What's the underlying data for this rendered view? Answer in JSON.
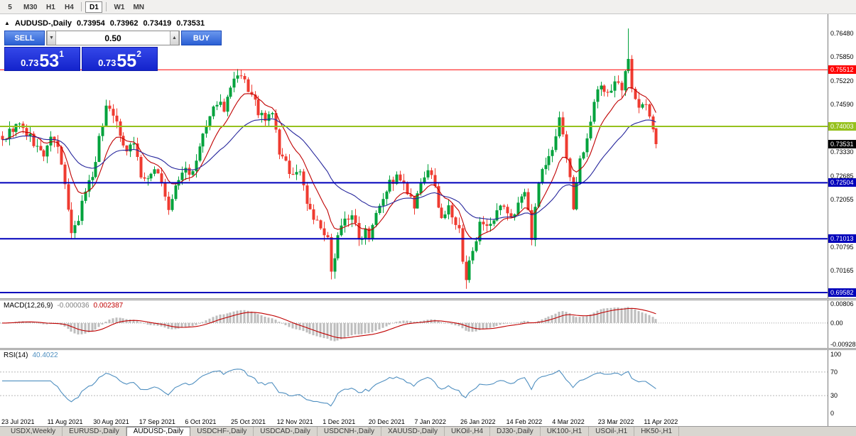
{
  "colors": {
    "candle_up": "#00a23c",
    "candle_down": "#ef3b30",
    "ma_fast": "#c00000",
    "ma_slow": "#26269c",
    "macd_hist": "#bdbdbd",
    "macd_signal": "#c00000",
    "rsi_line": "#4f8fc0"
  },
  "toolbar": {
    "periods": [
      {
        "label": "5"
      },
      {
        "label": "M30"
      },
      {
        "label": "H1"
      },
      {
        "label": "H4"
      },
      {
        "sep": true
      },
      {
        "label": "D1",
        "active": true
      },
      {
        "sep": true
      },
      {
        "label": "W1"
      },
      {
        "label": "MN"
      }
    ]
  },
  "chart_header": {
    "symbol": "AUDUSD-,Daily",
    "open": "0.73954",
    "high": "0.73962",
    "low": "0.73419",
    "close": "0.73531"
  },
  "trade_panel": {
    "sell_label": "SELL",
    "buy_label": "BUY",
    "volume": "0.50",
    "bid": {
      "prefix": "0.73",
      "big": "53",
      "sup": "1"
    },
    "ask": {
      "prefix": "0.73",
      "big": "55",
      "sup": "2"
    }
  },
  "price_axis": {
    "ticks": [
      {
        "label": "0.76480",
        "value": 0.7648
      },
      {
        "label": "0.75850",
        "value": 0.7585
      },
      {
        "label": "0.75220",
        "value": 0.7522
      },
      {
        "label": "0.74590",
        "value": 0.7459
      },
      {
        "label": "0.73330",
        "value": 0.7333
      },
      {
        "label": "0.72685",
        "value": 0.72685
      },
      {
        "label": "0.72055",
        "value": 0.72055
      },
      {
        "label": "0.70795",
        "value": 0.70795
      },
      {
        "label": "0.70165",
        "value": 0.70165
      }
    ],
    "lines": [
      {
        "label": "0.75512",
        "value": 0.75512,
        "color": "#ff0000",
        "width": 1
      },
      {
        "label": "0.74003",
        "value": 0.74003,
        "color": "#96c11e",
        "width": 2
      },
      {
        "label": "0.72504",
        "value": 0.72504,
        "color": "#0000bb",
        "width": 2
      },
      {
        "label": "0.71013",
        "value": 0.71013,
        "color": "#0000bb",
        "width": 2
      },
      {
        "label": "0.69582",
        "value": 0.69582,
        "color": "#0000bb",
        "width": 2
      }
    ],
    "current": {
      "label": "0.73531",
      "value": 0.73531,
      "color": "#000000"
    }
  },
  "macd": {
    "label": "MACD(12,26,9)",
    "value1": "-0.000036",
    "value2": "0.002387",
    "axis": [
      {
        "label": "0.00806",
        "value": 0.00806
      },
      {
        "label": "0.00",
        "value": 0
      },
      {
        "label": "-0.00928",
        "value": -0.00928
      }
    ]
  },
  "rsi": {
    "label": "RSI(14)",
    "value": "40.4022",
    "levels": [
      70,
      30
    ],
    "axis": [
      {
        "label": "100",
        "value": 100
      },
      {
        "label": "70",
        "value": 70
      },
      {
        "label": "30",
        "value": 30
      },
      {
        "label": "0",
        "value": 0
      }
    ]
  },
  "time_axis": {
    "labels": [
      "23 Jul 2021",
      "11 Aug 2021",
      "30 Aug 2021",
      "17 Sep 2021",
      "6 Oct 2021",
      "25 Oct 2021",
      "12 Nov 2021",
      "1 Dec 2021",
      "20 Dec 2021",
      "7 Jan 2022",
      "26 Jan 2022",
      "14 Feb 2022",
      "4 Mar 2022",
      "23 Mar 2022",
      "11 Apr 2022"
    ]
  },
  "tabs": [
    {
      "label": "USDX,Weekly"
    },
    {
      "label": "EURUSD-,Daily"
    },
    {
      "label": "AUDUSD-,Daily",
      "active": true
    },
    {
      "label": "USDCHF-,Daily"
    },
    {
      "label": "USDCAD-,Daily"
    },
    {
      "label": "USDCNH-,Daily"
    },
    {
      "label": "XAUUSD-,Daily"
    },
    {
      "label": "UKOil-,H4"
    },
    {
      "label": "DJ30-,Daily"
    },
    {
      "label": "UK100-,H1"
    },
    {
      "label": "USOil-,H1"
    },
    {
      "label": "HK50-,H1"
    }
  ],
  "chart_data": {
    "type": "candlestick",
    "symbol": "AUDUSD-,Daily",
    "count": 190,
    "price_min": 0.6943,
    "price_max": 0.7699,
    "anchors": [
      [
        0,
        0.7365
      ],
      [
        3,
        0.7395
      ],
      [
        5,
        0.7402
      ],
      [
        8,
        0.737
      ],
      [
        10,
        0.7345
      ],
      [
        12,
        0.7318
      ],
      [
        13,
        0.7355
      ],
      [
        15,
        0.7368
      ],
      [
        16,
        0.734
      ],
      [
        18,
        0.725
      ],
      [
        20,
        0.7106
      ],
      [
        22,
        0.715
      ],
      [
        24,
        0.7235
      ],
      [
        26,
        0.727
      ],
      [
        28,
        0.7365
      ],
      [
        30,
        0.7455
      ],
      [
        32,
        0.744
      ],
      [
        34,
        0.737
      ],
      [
        36,
        0.7345
      ],
      [
        38,
        0.736
      ],
      [
        40,
        0.727
      ],
      [
        42,
        0.725
      ],
      [
        44,
        0.7295
      ],
      [
        46,
        0.7255
      ],
      [
        48,
        0.717
      ],
      [
        50,
        0.724
      ],
      [
        53,
        0.729
      ],
      [
        55,
        0.727
      ],
      [
        58,
        0.738
      ],
      [
        60,
        0.7415
      ],
      [
        62,
        0.747
      ],
      [
        64,
        0.745
      ],
      [
        66,
        0.75
      ],
      [
        68,
        0.753
      ],
      [
        70,
        0.7518
      ],
      [
        72,
        0.748
      ],
      [
        74,
        0.744
      ],
      [
        76,
        0.741
      ],
      [
        78,
        0.744
      ],
      [
        80,
        0.733
      ],
      [
        82,
        0.73
      ],
      [
        84,
        0.727
      ],
      [
        86,
        0.7285
      ],
      [
        88,
        0.72
      ],
      [
        90,
        0.716
      ],
      [
        92,
        0.7124
      ],
      [
        94,
        0.7094
      ],
      [
        95,
        0.7005
      ],
      [
        97,
        0.7118
      ],
      [
        99,
        0.715
      ],
      [
        101,
        0.717
      ],
      [
        103,
        0.7096
      ],
      [
        105,
        0.713
      ],
      [
        106,
        0.7112
      ],
      [
        108,
        0.718
      ],
      [
        110,
        0.7215
      ],
      [
        112,
        0.725
      ],
      [
        114,
        0.7263
      ],
      [
        116,
        0.724
      ],
      [
        117,
        0.7223
      ],
      [
        119,
        0.7181
      ],
      [
        121,
        0.724
      ],
      [
        123,
        0.729
      ],
      [
        125,
        0.723
      ],
      [
        127,
        0.716
      ],
      [
        129,
        0.718
      ],
      [
        131,
        0.714
      ],
      [
        132,
        0.7121
      ],
      [
        133,
        0.7034
      ],
      [
        134,
        0.699
      ],
      [
        136,
        0.708
      ],
      [
        138,
        0.7135
      ],
      [
        140,
        0.7125
      ],
      [
        142,
        0.714
      ],
      [
        143,
        0.717
      ],
      [
        145,
        0.719
      ],
      [
        147,
        0.715
      ],
      [
        149,
        0.72
      ],
      [
        151,
        0.7225
      ],
      [
        153,
        0.711
      ],
      [
        155,
        0.7262
      ],
      [
        157,
        0.73
      ],
      [
        159,
        0.7334
      ],
      [
        161,
        0.743
      ],
      [
        163,
        0.732
      ],
      [
        165,
        0.719
      ],
      [
        167,
        0.731
      ],
      [
        169,
        0.7378
      ],
      [
        171,
        0.7465
      ],
      [
        173,
        0.751
      ],
      [
        175,
        0.7491
      ],
      [
        177,
        0.7513
      ],
      [
        179,
        0.7497
      ],
      [
        181,
        0.7577
      ],
      [
        182,
        0.751
      ],
      [
        184,
        0.7458
      ],
      [
        186,
        0.7454
      ],
      [
        188,
        0.7395
      ],
      [
        189,
        0.7353
      ]
    ],
    "wick_overrides": [
      [
        20,
        "l",
        0.7102
      ],
      [
        48,
        "l",
        0.7165
      ],
      [
        95,
        "l",
        0.6993
      ],
      [
        134,
        "l",
        0.6968
      ],
      [
        161,
        "h",
        0.744
      ],
      [
        181,
        "h",
        0.7661
      ]
    ],
    "last_candle": {
      "o": 0.73954,
      "h": 0.73962,
      "l": 0.73419,
      "c": 0.73531
    },
    "ma_fast_period": 10,
    "ma_slow_period": 30,
    "macd_params": [
      12,
      26,
      9
    ],
    "rsi_period": 14
  }
}
